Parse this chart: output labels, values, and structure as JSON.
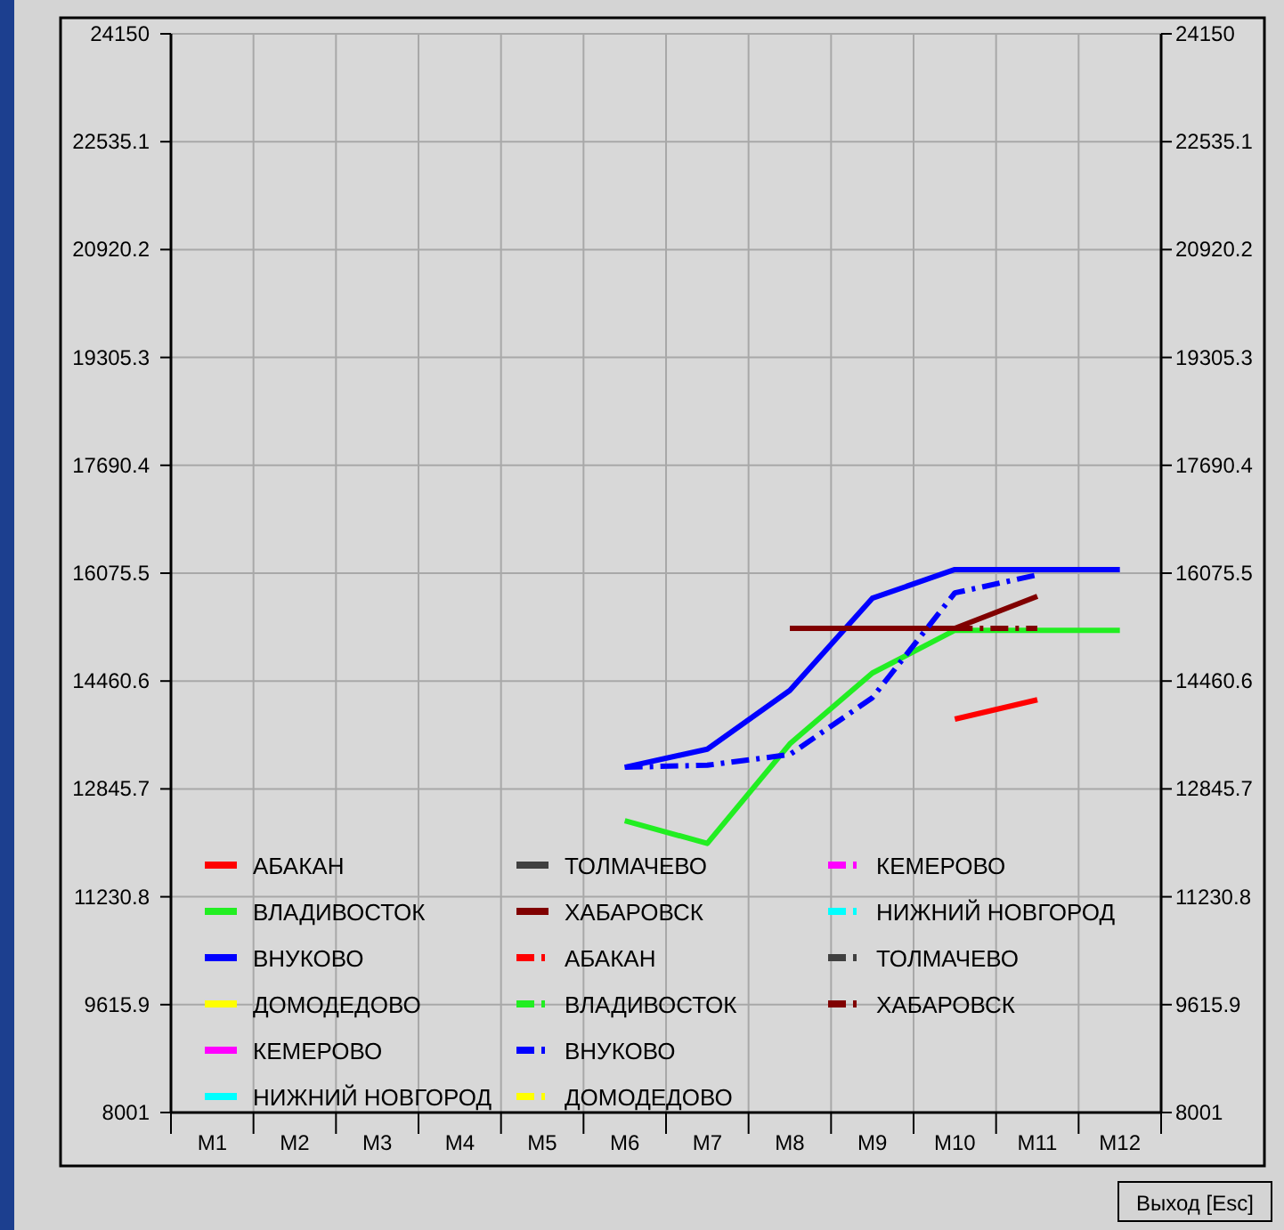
{
  "chart_data": {
    "type": "line",
    "categories": [
      "M1",
      "M2",
      "M3",
      "M4",
      "M5",
      "M6",
      "M7",
      "M8",
      "M9",
      "M10",
      "M11",
      "M12"
    ],
    "ylim": [
      8001,
      24150
    ],
    "yticks": [
      8001,
      9615.9,
      11230.8,
      12845.7,
      14460.6,
      16075.5,
      17690.4,
      19305.3,
      20920.2,
      22535.1,
      24150
    ],
    "y2lim": [
      8001,
      24150
    ],
    "y2ticks": [
      8001,
      9615.9,
      11230.8,
      12845.7,
      14460.6,
      16075.5,
      17690.4,
      19305.3,
      20920.2,
      22535.1,
      24150
    ],
    "grid": true,
    "legend": "bottom left",
    "annotations": [
      "Выход [Esc]"
    ],
    "series": [
      {
        "name": "АБАКАН",
        "color": "#ff0000",
        "line_style": "solid",
        "values": [
          null,
          null,
          null,
          null,
          null,
          null,
          null,
          null,
          null,
          13890,
          14180,
          null
        ]
      },
      {
        "name": "ВЛАДИВОСТОК",
        "color": "#22ee22",
        "line_style": "solid",
        "values": [
          null,
          null,
          null,
          null,
          null,
          12370,
          12030,
          13520,
          14580,
          15220,
          15220,
          15220
        ]
      },
      {
        "name": "ВНУКОВО",
        "color": "#0000ff",
        "line_style": "solid",
        "values": [
          null,
          null,
          null,
          null,
          null,
          13170,
          13440,
          14320,
          15700,
          16130,
          16130,
          16130
        ]
      },
      {
        "name": "ДОМОДЕДОВО",
        "color": "#ffff00",
        "line_style": "solid",
        "values": [
          null,
          null,
          null,
          null,
          null,
          null,
          null,
          null,
          null,
          null,
          null,
          null
        ]
      },
      {
        "name": "КЕМЕРОВО",
        "color": "#ff00ff",
        "line_style": "solid",
        "values": [
          null,
          null,
          null,
          null,
          null,
          null,
          null,
          null,
          null,
          null,
          null,
          null
        ]
      },
      {
        "name": "НИЖНИЙ НОВГОРОД",
        "color": "#00ffff",
        "line_style": "solid",
        "values": [
          null,
          null,
          null,
          null,
          null,
          null,
          null,
          null,
          null,
          null,
          null,
          null
        ]
      },
      {
        "name": "ТОЛМАЧЕВО",
        "color": "#404040",
        "line_style": "solid",
        "values": [
          null,
          null,
          null,
          null,
          null,
          null,
          null,
          null,
          null,
          null,
          null,
          null
        ]
      },
      {
        "name": "ХАБАРОВСК",
        "color": "#800000",
        "line_style": "solid",
        "values": [
          null,
          null,
          null,
          null,
          null,
          null,
          null,
          15250,
          15250,
          15250,
          15730,
          null
        ]
      },
      {
        "name": "АБАКАН",
        "color": "#ff0000",
        "line_style": "dashed",
        "values": [
          null,
          null,
          null,
          null,
          null,
          null,
          null,
          null,
          null,
          null,
          null,
          null
        ]
      },
      {
        "name": "ВЛАДИВОСТОК",
        "color": "#22ee22",
        "line_style": "dashed",
        "values": [
          null,
          null,
          null,
          null,
          null,
          null,
          null,
          null,
          null,
          null,
          null,
          null
        ]
      },
      {
        "name": "ВНУКОВО",
        "color": "#0000ff",
        "line_style": "dashed",
        "values": [
          null,
          null,
          null,
          null,
          null,
          13170,
          13200,
          13360,
          14210,
          15780,
          16050,
          null
        ]
      },
      {
        "name": "ДОМОДЕДОВО",
        "color": "#ffff00",
        "line_style": "dashed",
        "values": [
          null,
          null,
          null,
          null,
          null,
          null,
          null,
          null,
          null,
          null,
          null,
          null
        ]
      },
      {
        "name": "КЕМЕРОВО",
        "color": "#ff00ff",
        "line_style": "dashed",
        "values": [
          null,
          null,
          null,
          null,
          null,
          null,
          null,
          null,
          null,
          null,
          null,
          null
        ]
      },
      {
        "name": "НИЖНИЙ НОВГОРОД",
        "color": "#00ffff",
        "line_style": "dashed",
        "values": [
          null,
          null,
          null,
          null,
          null,
          null,
          null,
          null,
          null,
          null,
          null,
          null
        ]
      },
      {
        "name": "ТОЛМАЧЕВО",
        "color": "#404040",
        "line_style": "dashed",
        "values": [
          null,
          null,
          null,
          null,
          null,
          null,
          null,
          null,
          null,
          null,
          null,
          null
        ]
      },
      {
        "name": "ХАБАРОВСК",
        "color": "#800000",
        "line_style": "dashed",
        "values": [
          null,
          null,
          null,
          null,
          null,
          null,
          null,
          null,
          null,
          15250,
          15250,
          null
        ]
      }
    ]
  }
}
